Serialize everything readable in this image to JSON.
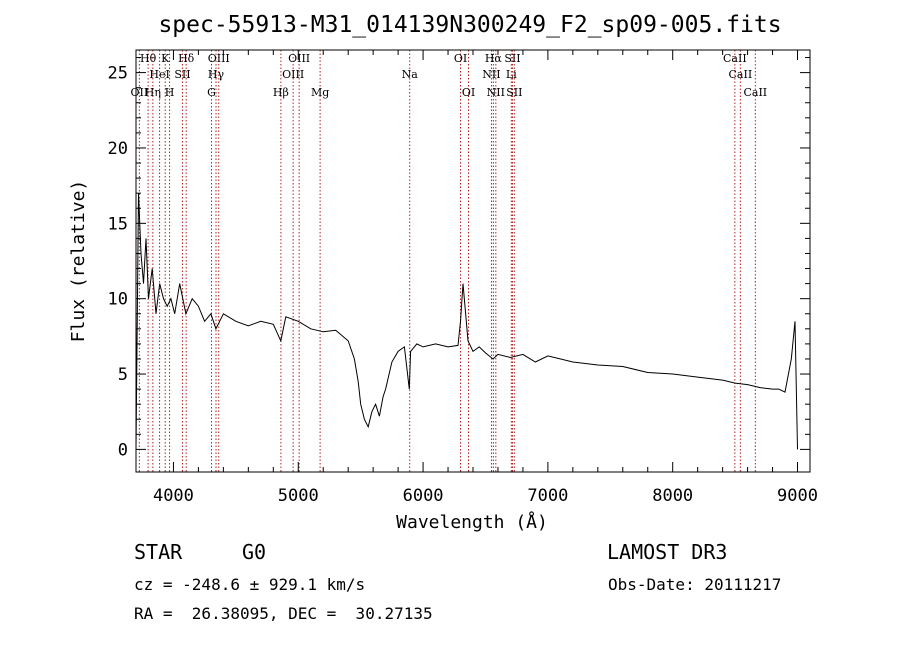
{
  "chart_data": {
    "type": "line",
    "title": "spec-55913-M31_014139N300249_F2_sp09-005.fits",
    "xlabel": "Wavelength (Å)",
    "ylabel": "Flux (relative)",
    "xlim": [
      3700,
      9100
    ],
    "ylim": [
      -1.5,
      26.5
    ],
    "xticks": [
      4000,
      5000,
      6000,
      7000,
      8000,
      9000
    ],
    "yticks": [
      0,
      5,
      10,
      15,
      20,
      25
    ],
    "series": [
      {
        "name": "spectrum",
        "x": [
          3700,
          3720,
          3740,
          3760,
          3780,
          3800,
          3830,
          3860,
          3890,
          3920,
          3950,
          3980,
          4010,
          4050,
          4100,
          4150,
          4200,
          4250,
          4300,
          4340,
          4400,
          4500,
          4600,
          4700,
          4800,
          4860,
          4900,
          5000,
          5100,
          5200,
          5300,
          5400,
          5450,
          5480,
          5500,
          5530,
          5560,
          5590,
          5620,
          5650,
          5680,
          5700,
          5750,
          5800,
          5850,
          5890,
          5900,
          5950,
          6000,
          6100,
          6200,
          6280,
          6300,
          6320,
          6360,
          6400,
          6450,
          6500,
          6560,
          6600,
          6700,
          6800,
          6900,
          7000,
          7200,
          7400,
          7600,
          7800,
          8000,
          8200,
          8400,
          8500,
          8600,
          8700,
          8800,
          8850,
          8900,
          8950,
          8980,
          9000
        ],
        "y": [
          0,
          17,
          13,
          11,
          14,
          10,
          12,
          9,
          11,
          10,
          9.5,
          10,
          9,
          11,
          9,
          10,
          9.5,
          8.5,
          9,
          8,
          9,
          8.5,
          8.2,
          8.5,
          8.3,
          7.2,
          8.8,
          8.5,
          8,
          7.8,
          7.9,
          7.2,
          6,
          4.5,
          3,
          2,
          1.5,
          2.5,
          3,
          2.2,
          3.5,
          4,
          5.8,
          6.5,
          6.8,
          4,
          6.5,
          7,
          6.8,
          7,
          6.8,
          6.9,
          8.5,
          11,
          7.2,
          6.5,
          6.8,
          6.4,
          6,
          6.3,
          6.1,
          6.3,
          5.8,
          6.2,
          5.8,
          5.6,
          5.5,
          5.1,
          5,
          4.8,
          4.6,
          4.4,
          4.3,
          4.1,
          4,
          4,
          3.8,
          6,
          8.5,
          0
        ]
      }
    ],
    "lines": [
      {
        "label": "OII",
        "wave": 3727,
        "row": 3
      },
      {
        "label": "Hθ",
        "wave": 3797,
        "row": 1
      },
      {
        "label": "Hη",
        "wave": 3835,
        "row": 3
      },
      {
        "label": "HeI",
        "wave": 3889,
        "row": 2
      },
      {
        "label": "K",
        "wave": 3934,
        "row": 1
      },
      {
        "label": "H",
        "wave": 3969,
        "row": 3
      },
      {
        "label": "SII",
        "wave": 4072,
        "row": 2
      },
      {
        "label": "Hδ",
        "wave": 4102,
        "row": 1
      },
      {
        "label": "G",
        "wave": 4305,
        "row": 3
      },
      {
        "label": "Hγ",
        "wave": 4341,
        "row": 2
      },
      {
        "label": "OIII",
        "wave": 4363,
        "row": 1
      },
      {
        "label": "Hβ",
        "wave": 4861,
        "row": 3
      },
      {
        "label": "OIII",
        "wave": 4959,
        "row": 2
      },
      {
        "label": "OIII",
        "wave": 5007,
        "row": 1
      },
      {
        "label": "Mg",
        "wave": 5175,
        "row": 3
      },
      {
        "label": "Na",
        "wave": 5893,
        "row": 2
      },
      {
        "label": "OI",
        "wave": 6300,
        "row": 1
      },
      {
        "label": "OI",
        "wave": 6364,
        "row": 3
      },
      {
        "label": "NII",
        "wave": 6548,
        "row": 2
      },
      {
        "label": "Hα",
        "wave": 6563,
        "row": 1
      },
      {
        "label": "NII",
        "wave": 6583,
        "row": 3
      },
      {
        "label": "Li",
        "wave": 6707,
        "row": 2
      },
      {
        "label": "SII",
        "wave": 6716,
        "row": 1
      },
      {
        "label": "SII",
        "wave": 6731,
        "row": 3
      },
      {
        "label": "CaII",
        "wave": 8498,
        "row": 1
      },
      {
        "label": "CaII",
        "wave": 8542,
        "row": 2
      },
      {
        "label": "CaII",
        "wave": 8662,
        "row": 3
      }
    ]
  },
  "info": {
    "class_label": "STAR",
    "subclass": "G0",
    "survey": "LAMOST DR3",
    "cz_text": "cz = -248.6 ± 929.1 km/s",
    "obs_date_text": "Obs-Date: 20111217",
    "radec_text": "RA =  26.38095, DEC =  30.27135"
  },
  "colors": {
    "spectrum": "#000000",
    "line_marker": "#b22222",
    "axes": "#000000"
  }
}
